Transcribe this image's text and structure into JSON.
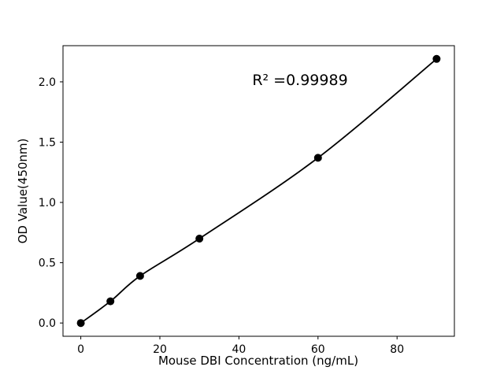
{
  "chart_data": {
    "type": "scatter",
    "title": "",
    "xlabel": "Mouse DBI Concentration (ng/mL)",
    "ylabel": "OD Value(450nm)",
    "annotation": "R² =0.99989",
    "x": [
      0,
      7.5,
      15,
      30,
      60,
      90
    ],
    "y": [
      0.0,
      0.18,
      0.39,
      0.7,
      1.37,
      2.19
    ],
    "fit_line": true,
    "xlim": [
      -4.5,
      94.5
    ],
    "ylim": [
      -0.11,
      2.3
    ],
    "xticks": {
      "values": [
        0,
        20,
        40,
        60,
        80
      ],
      "labels": [
        "0",
        "20",
        "40",
        "60",
        "80"
      ]
    },
    "yticks": {
      "values": [
        0.0,
        0.5,
        1.0,
        1.5,
        2.0
      ],
      "labels": [
        "0.0",
        "0.5",
        "1.0",
        "1.5",
        "2.0"
      ]
    },
    "grid": false,
    "legend": null,
    "marker_color": "#000000",
    "line_color": "#000000",
    "background": "#ffffff"
  }
}
